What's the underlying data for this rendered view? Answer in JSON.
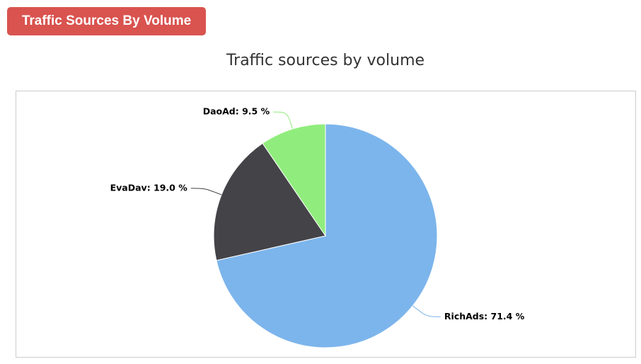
{
  "header": {
    "badge": "Traffic Sources By Volume"
  },
  "chart_data": {
    "type": "pie",
    "title": "Traffic sources by volume",
    "categories": [
      "RichAds",
      "EvaDav",
      "DaoAd"
    ],
    "values": [
      71.4,
      19.0,
      9.5
    ],
    "value_labels": [
      "RichAds: 71.4 %",
      "EvaDav: 19.0 %",
      "DaoAd: 9.5 %"
    ],
    "colors": [
      "#7cb5ec",
      "#434348",
      "#90ed7d"
    ]
  }
}
